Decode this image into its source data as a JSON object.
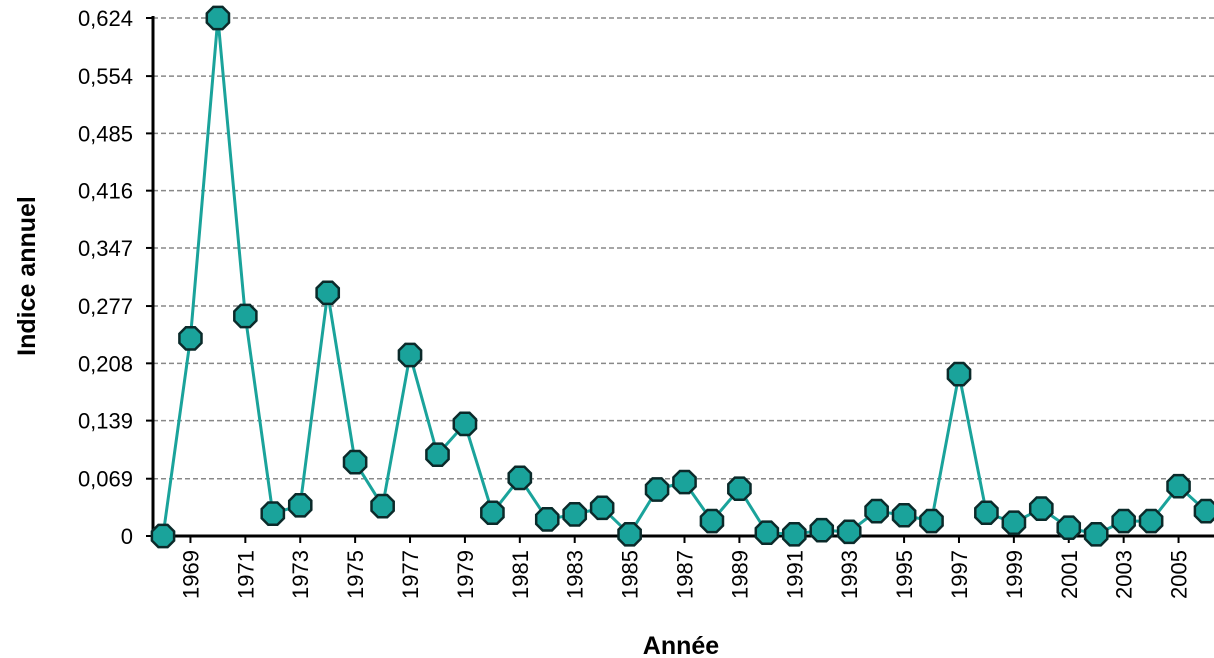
{
  "chart_data": {
    "type": "line",
    "title": "",
    "xlabel": "Année",
    "ylabel": "Indice annuel",
    "xlim": [
      1968,
      2006
    ],
    "ylim": [
      0,
      0.624
    ],
    "y_ticks": [
      "0",
      "0,069",
      "0,139",
      "0,208",
      "0,277",
      "0,347",
      "0,416",
      "0,485",
      "0,554",
      "0,624"
    ],
    "x_ticks": [
      "1969",
      "1971",
      "1973",
      "1975",
      "1977",
      "1979",
      "1981",
      "1983",
      "1985",
      "1987",
      "1989",
      "1991",
      "1993",
      "1995",
      "1997",
      "1999",
      "2001",
      "2003",
      "2005"
    ],
    "grid": true,
    "series": [
      {
        "x": [
          1968,
          1969,
          1970,
          1971,
          1972,
          1973,
          1974,
          1975,
          1976,
          1977,
          1978,
          1979,
          1980,
          1981,
          1982,
          1983,
          1984,
          1985,
          1986,
          1987,
          1988,
          1989,
          1990,
          1991,
          1992,
          1993,
          1994,
          1995,
          1996,
          1997,
          1998,
          1999,
          2000,
          2001,
          2002,
          2003,
          2004,
          2005,
          2006
        ],
        "values": [
          0.0,
          0.238,
          0.624,
          0.265,
          0.027,
          0.037,
          0.293,
          0.089,
          0.036,
          0.218,
          0.098,
          0.135,
          0.028,
          0.07,
          0.02,
          0.026,
          0.034,
          0.002,
          0.056,
          0.065,
          0.018,
          0.057,
          0.004,
          0.002,
          0.007,
          0.005,
          0.03,
          0.025,
          0.018,
          0.195,
          0.028,
          0.016,
          0.033,
          0.01,
          0.002,
          0.018,
          0.018,
          0.06,
          0.03
        ]
      }
    ],
    "colors": {
      "line": "#1aa39b",
      "marker_fill": "#1aa39b",
      "marker_edge": "#0b2a2a",
      "grid": "#888888",
      "axis": "#000000"
    }
  }
}
